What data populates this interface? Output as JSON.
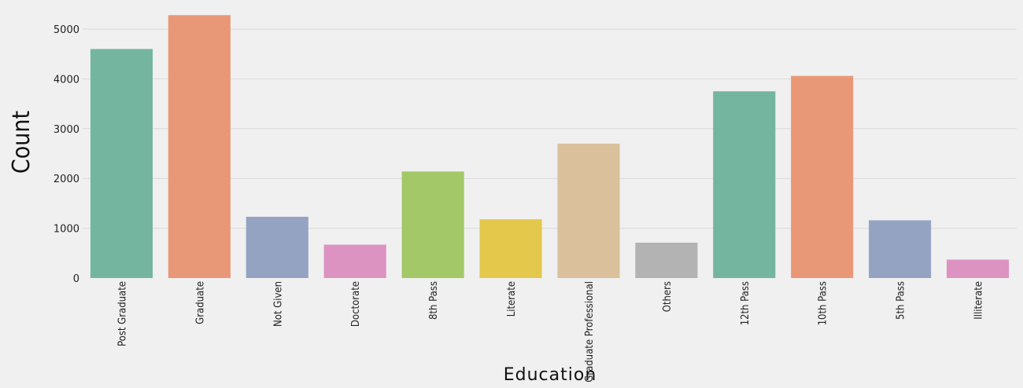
{
  "chart_data": {
    "type": "bar",
    "categories": [
      "Post Graduate",
      "Graduate",
      "Not Given",
      "Doctorate",
      "8th Pass",
      "Literate",
      "Graduate Professional",
      "Others",
      "12th Pass",
      "10th Pass",
      "5th Pass",
      "Illiterate"
    ],
    "values": [
      4600,
      5280,
      1230,
      670,
      2140,
      1180,
      2700,
      710,
      3750,
      4060,
      1160,
      370
    ],
    "colors": [
      "#74b5a0",
      "#e99877",
      "#95a3c3",
      "#dc93c1",
      "#a3c867",
      "#e4c84b",
      "#dac19c",
      "#b3b3b3",
      "#74b5a0",
      "#e99877",
      "#95a3c3",
      "#dc93c1"
    ],
    "xlabel": "Education",
    "ylabel": "Count",
    "ylim": [
      0,
      5300
    ],
    "yticks": [
      0,
      1000,
      2000,
      3000,
      4000,
      5000
    ],
    "grid": true,
    "legend": "none"
  }
}
